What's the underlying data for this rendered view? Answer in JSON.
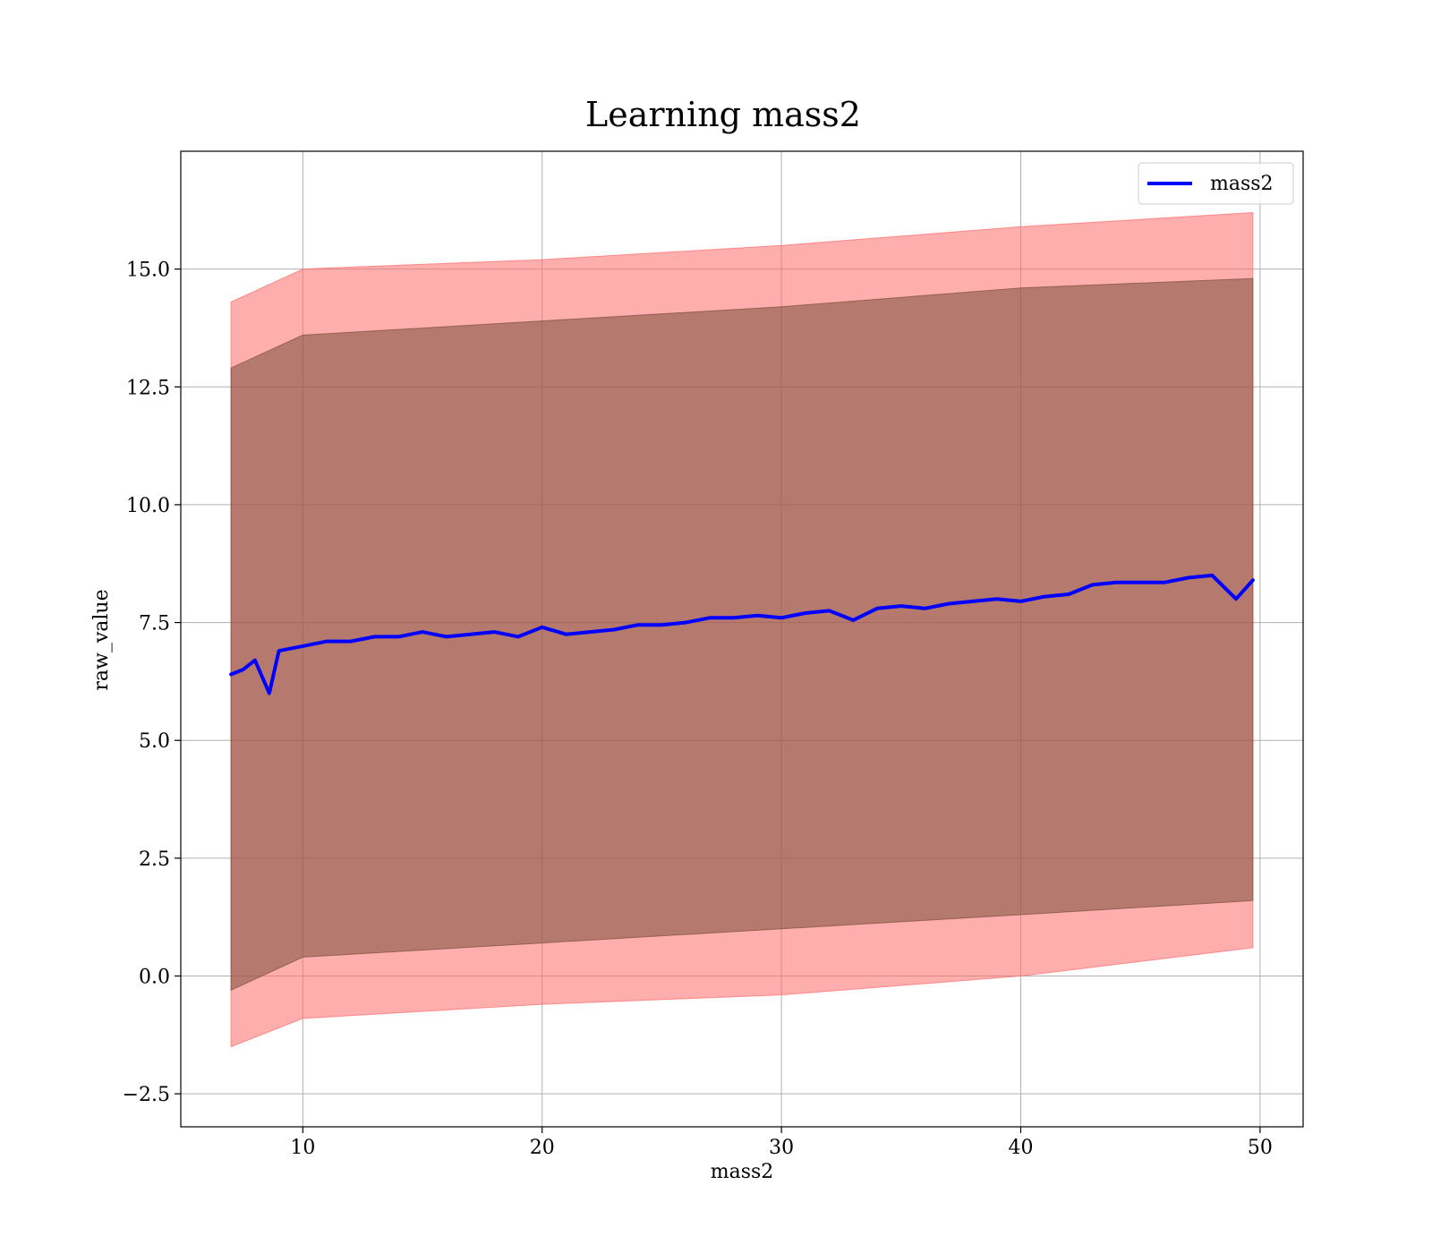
{
  "chart_data": {
    "type": "line",
    "title": "Learning mass2",
    "xlabel": "mass2",
    "ylabel": "raw_value",
    "xlim": [
      4.9,
      51.8
    ],
    "ylim": [
      -3.2,
      17.5
    ],
    "x_ticks": [
      10,
      20,
      30,
      40,
      50
    ],
    "x_tick_labels": [
      "10",
      "20",
      "30",
      "40",
      "50"
    ],
    "y_ticks": [
      -2.5,
      0.0,
      2.5,
      5.0,
      7.5,
      10.0,
      12.5,
      15.0
    ],
    "y_tick_labels": [
      "−2.5",
      "0.0",
      "2.5",
      "5.0",
      "7.5",
      "10.0",
      "12.5",
      "15.0"
    ],
    "grid": true,
    "legend": {
      "position": "top-right",
      "entries": [
        "mass2"
      ]
    },
    "colors": {
      "line": "#0000ff",
      "outer_band": "#ff6b6b",
      "inner_band": "#7a4f3a"
    },
    "series": [
      {
        "name": "mass2",
        "x": [
          7.0,
          7.5,
          8.0,
          8.6,
          9.0,
          10.0,
          11.0,
          12.0,
          13.0,
          14.0,
          15.0,
          16.0,
          17.0,
          18.0,
          19.0,
          20.0,
          21.0,
          22.0,
          23.0,
          24.0,
          25.0,
          26.0,
          27.0,
          28.0,
          29.0,
          30.0,
          31.0,
          32.0,
          33.0,
          34.0,
          35.0,
          36.0,
          37.0,
          38.0,
          39.0,
          40.0,
          41.0,
          42.0,
          43.0,
          44.0,
          45.0,
          46.0,
          47.0,
          48.0,
          49.0,
          49.7
        ],
        "y": [
          6.4,
          6.5,
          6.7,
          6.0,
          6.9,
          7.0,
          7.1,
          7.1,
          7.2,
          7.2,
          7.3,
          7.2,
          7.25,
          7.3,
          7.2,
          7.4,
          7.25,
          7.3,
          7.35,
          7.45,
          7.45,
          7.5,
          7.6,
          7.6,
          7.65,
          7.6,
          7.7,
          7.75,
          7.55,
          7.8,
          7.85,
          7.8,
          7.9,
          7.95,
          8.0,
          7.95,
          8.05,
          8.1,
          8.3,
          8.35,
          8.35,
          8.35,
          8.45,
          8.5,
          8.0,
          8.4
        ]
      }
    ],
    "bands": [
      {
        "x": [
          7.0,
          10.0,
          20.0,
          30.0,
          40.0,
          49.7
        ],
        "upper": [
          14.3,
          15.0,
          15.2,
          15.5,
          15.9,
          16.2
        ],
        "lower": [
          -1.5,
          -0.9,
          -0.6,
          -0.4,
          0.0,
          0.6
        ]
      },
      {
        "x": [
          7.0,
          10.0,
          20.0,
          30.0,
          40.0,
          49.7
        ],
        "upper": [
          12.9,
          13.6,
          13.9,
          14.2,
          14.6,
          14.8
        ],
        "lower": [
          -0.3,
          0.4,
          0.7,
          1.0,
          1.3,
          1.6
        ]
      }
    ]
  }
}
